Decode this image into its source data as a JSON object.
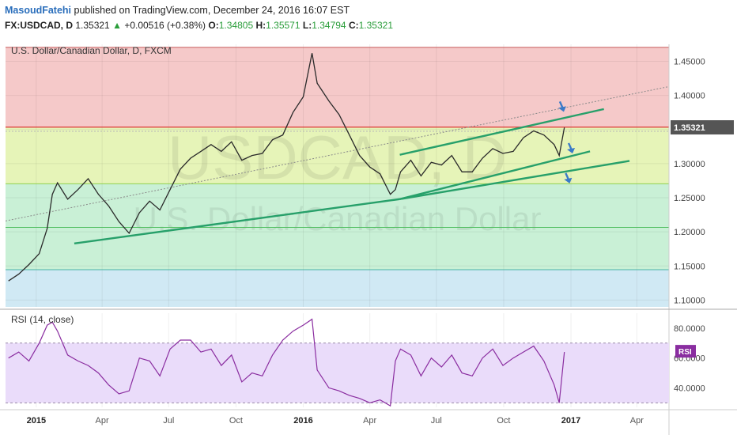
{
  "header": {
    "author": "MasoudFatehi",
    "published_text": " published on TradingView.com, December 24, 2016 16:07 EST",
    "symbol": "FX:USDCAD, D",
    "last": "1.35321",
    "change": "+0.00516 (+0.38%)",
    "open_label": "O:",
    "open": "1.34805",
    "high_label": "H:",
    "high": "1.35571",
    "low_label": "L:",
    "low": "1.34794",
    "close_label": "C:",
    "close": "1.35321"
  },
  "chart_data": [
    {
      "type": "line",
      "title": "U.S. Dollar/Canadian Dollar, D, FXCM",
      "watermark_symbol": "USDCAD, D",
      "watermark_name": "U.S. Dollar/Canadian Dollar",
      "xlabel": "",
      "ylabel": "",
      "ylim": [
        1.09,
        1.475
      ],
      "y_ticks": [
        "1.10000",
        "1.15000",
        "1.20000",
        "1.25000",
        "1.30000",
        "1.35000",
        "1.40000",
        "1.45000"
      ],
      "x_ticks": [
        "2015",
        "Apr",
        "Jul",
        "Oct",
        "2016",
        "Apr",
        "Jul",
        "Oct",
        "2017",
        "Apr"
      ],
      "x_range": [
        "2014-11-20",
        "2017-05-15"
      ],
      "last_price_label": "1.35321",
      "last_price": 1.35321,
      "horizontal_levels": [
        1.4705,
        1.3535,
        1.3475,
        1.2705,
        1.2065,
        1.1445
      ],
      "zone_colors": [
        "#f5c9c9",
        "#e6f4b8",
        "#c9f0d6",
        "#d0e9f4"
      ],
      "series": [
        {
          "name": "",
          "color": "#2a2a2a",
          "x": [
            "2014-11-24",
            "2014-12-08",
            "2014-12-22",
            "2015-01-05",
            "2015-01-16",
            "2015-01-23",
            "2015-01-30",
            "2015-02-13",
            "2015-02-27",
            "2015-03-13",
            "2015-03-27",
            "2015-04-10",
            "2015-04-24",
            "2015-05-08",
            "2015-05-22",
            "2015-06-05",
            "2015-06-19",
            "2015-07-03",
            "2015-07-17",
            "2015-07-31",
            "2015-08-14",
            "2015-08-28",
            "2015-09-11",
            "2015-09-25",
            "2015-10-09",
            "2015-10-23",
            "2015-11-06",
            "2015-11-20",
            "2015-12-04",
            "2015-12-18",
            "2016-01-01",
            "2016-01-13",
            "2016-01-20",
            "2016-02-05",
            "2016-02-19",
            "2016-03-04",
            "2016-03-18",
            "2016-04-01",
            "2016-04-15",
            "2016-04-29",
            "2016-05-06",
            "2016-05-13",
            "2016-05-27",
            "2016-06-10",
            "2016-06-24",
            "2016-07-08",
            "2016-07-22",
            "2016-08-05",
            "2016-08-19",
            "2016-09-02",
            "2016-09-16",
            "2016-09-30",
            "2016-10-14",
            "2016-10-28",
            "2016-11-11",
            "2016-11-25",
            "2016-12-09",
            "2016-12-16",
            "2016-12-23"
          ],
          "y": [
            1.128,
            1.138,
            1.152,
            1.168,
            1.205,
            1.255,
            1.272,
            1.248,
            1.262,
            1.278,
            1.255,
            1.238,
            1.215,
            1.198,
            1.228,
            1.245,
            1.232,
            1.262,
            1.292,
            1.308,
            1.318,
            1.328,
            1.318,
            1.332,
            1.305,
            1.312,
            1.315,
            1.335,
            1.342,
            1.375,
            1.398,
            1.462,
            1.418,
            1.392,
            1.372,
            1.342,
            1.312,
            1.295,
            1.285,
            1.255,
            1.262,
            1.288,
            1.305,
            1.282,
            1.302,
            1.298,
            1.312,
            1.288,
            1.288,
            1.308,
            1.322,
            1.315,
            1.318,
            1.338,
            1.348,
            1.342,
            1.328,
            1.312,
            1.353
          ]
        }
      ],
      "trendlines": [
        {
          "name": "dotted long-term",
          "color": "#8a8a8a",
          "style": "dotted",
          "from": [
            "2014-11-20",
            1.216
          ],
          "to": [
            "2017-05-15",
            1.413
          ]
        },
        {
          "name": "support 2015",
          "color": "#27a06a",
          "style": "solid",
          "from": [
            "2015-02-22",
            1.183
          ],
          "to": [
            "2016-05-12",
            1.248
          ]
        },
        {
          "name": "channel top",
          "color": "#27a06a",
          "style": "solid",
          "from": [
            "2016-05-12",
            1.313
          ],
          "to": [
            "2017-02-15",
            1.38
          ]
        },
        {
          "name": "channel bottom",
          "color": "#27a06a",
          "style": "solid",
          "from": [
            "2016-05-12",
            1.248
          ],
          "to": [
            "2017-01-27",
            1.318
          ]
        },
        {
          "name": "lower support",
          "color": "#27a06a",
          "style": "solid",
          "from": [
            "2016-05-12",
            1.248
          ],
          "to": [
            "2017-03-22",
            1.304
          ]
        }
      ],
      "arrows_color": "#3a7ac8"
    },
    {
      "type": "line",
      "title": "RSI (14, close)",
      "xlabel": "",
      "ylabel": "",
      "ylim": [
        27,
        90
      ],
      "y_ticks": [
        "40.0000",
        "60.0000",
        "80.0000"
      ],
      "band": [
        30,
        70
      ],
      "band_color": "#eadcfa",
      "badge": "RSI",
      "badge_color": "#8a2da0",
      "series": [
        {
          "name": "RSI",
          "color": "#8a2da0",
          "x": [
            "2014-11-24",
            "2014-12-08",
            "2014-12-22",
            "2015-01-05",
            "2015-01-16",
            "2015-01-23",
            "2015-01-30",
            "2015-02-13",
            "2015-02-27",
            "2015-03-13",
            "2015-03-27",
            "2015-04-10",
            "2015-04-24",
            "2015-05-08",
            "2015-05-22",
            "2015-06-05",
            "2015-06-19",
            "2015-07-03",
            "2015-07-17",
            "2015-07-31",
            "2015-08-14",
            "2015-08-28",
            "2015-09-11",
            "2015-09-25",
            "2015-10-09",
            "2015-10-23",
            "2015-11-06",
            "2015-11-20",
            "2015-12-04",
            "2015-12-18",
            "2016-01-01",
            "2016-01-13",
            "2016-01-20",
            "2016-02-05",
            "2016-02-19",
            "2016-03-04",
            "2016-03-18",
            "2016-04-01",
            "2016-04-15",
            "2016-04-29",
            "2016-05-06",
            "2016-05-13",
            "2016-05-27",
            "2016-06-10",
            "2016-06-24",
            "2016-07-08",
            "2016-07-22",
            "2016-08-05",
            "2016-08-19",
            "2016-09-02",
            "2016-09-16",
            "2016-09-30",
            "2016-10-14",
            "2016-10-28",
            "2016-11-11",
            "2016-11-25",
            "2016-12-09",
            "2016-12-16",
            "2016-12-23"
          ],
          "y": [
            60,
            64,
            58,
            70,
            82,
            84,
            78,
            62,
            58,
            55,
            50,
            42,
            36,
            38,
            60,
            58,
            48,
            66,
            72,
            72,
            64,
            66,
            55,
            62,
            44,
            50,
            48,
            62,
            72,
            78,
            82,
            86,
            52,
            40,
            38,
            35,
            33,
            30,
            32,
            28,
            58,
            66,
            62,
            48,
            60,
            54,
            62,
            50,
            48,
            60,
            66,
            55,
            60,
            64,
            68,
            58,
            42,
            30,
            64
          ]
        }
      ]
    }
  ]
}
